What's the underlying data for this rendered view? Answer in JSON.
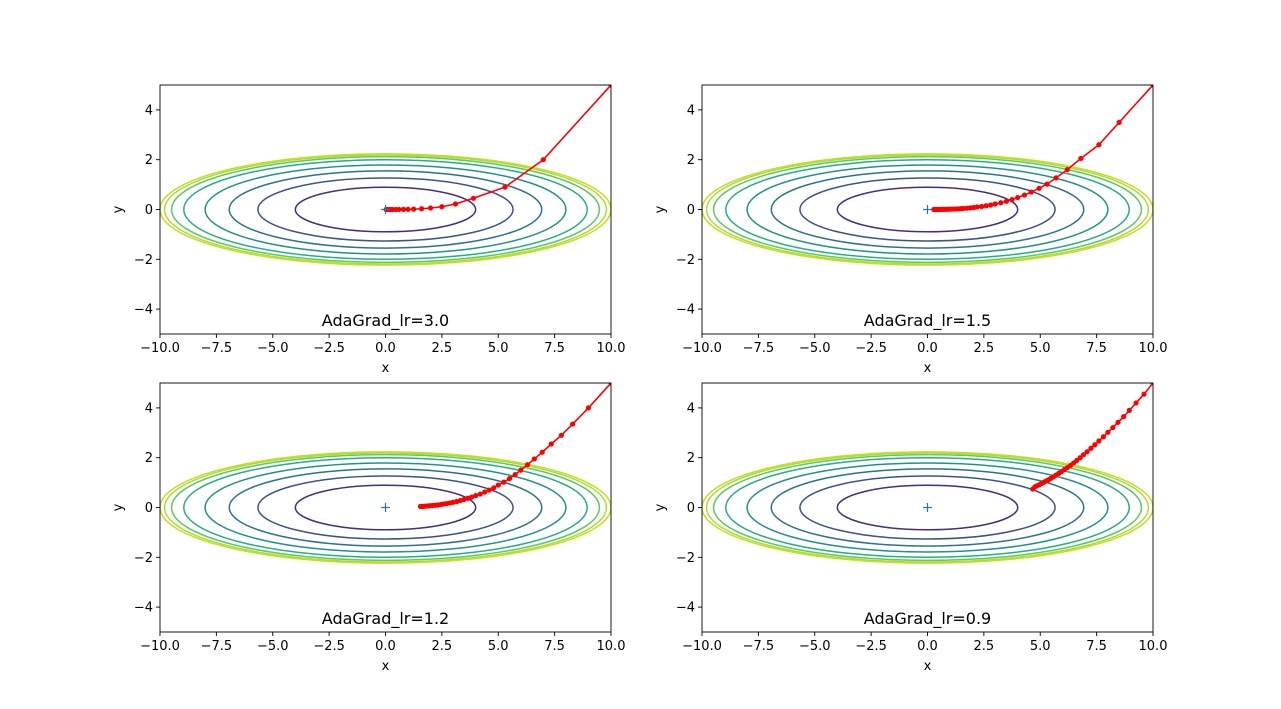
{
  "chart_data": [
    {
      "type": "line",
      "title": "AdaGrad_lr=3.0",
      "xlabel": "x",
      "ylabel": "y",
      "xlim": [
        -10,
        10
      ],
      "ylim": [
        -5,
        5
      ],
      "xticks": [
        "−10.0",
        "−7.5",
        "−5.0",
        "−2.5",
        "0.0",
        "2.5",
        "5.0",
        "7.5",
        "10.0"
      ],
      "yticks": [
        "−4",
        "−2",
        "0",
        "2",
        "4"
      ],
      "grid": false,
      "contour": {
        "function": "x^2/20 + y^2",
        "levels": [
          0.8,
          1.6,
          2.4,
          3.2,
          4.0,
          4.5,
          4.8,
          5.0
        ],
        "colormap": "viridis"
      },
      "minimum_marker": {
        "x": 0,
        "y": 0,
        "marker": "+"
      },
      "series": [
        {
          "color": "#ff0000",
          "x": [
            10.0,
            7.0,
            5.3,
            3.9,
            3.1,
            2.5,
            2.0,
            1.6,
            1.25,
            1.0,
            0.8,
            0.6,
            0.45,
            0.3,
            0.2,
            0.1,
            0.03
          ],
          "y": [
            5.0,
            2.0,
            0.9,
            0.45,
            0.22,
            0.11,
            0.06,
            0.03,
            0.015,
            0.008,
            0.004,
            0.002,
            0.001,
            0.0005,
            0.0002,
            0.0001,
            0.0
          ]
        }
      ]
    },
    {
      "type": "line",
      "title": "AdaGrad_lr=1.5",
      "xlabel": "x",
      "ylabel": "y",
      "xlim": [
        -10,
        10
      ],
      "ylim": [
        -5,
        5
      ],
      "xticks": [
        "−10.0",
        "−7.5",
        "−5.0",
        "−2.5",
        "0.0",
        "2.5",
        "5.0",
        "7.5",
        "10.0"
      ],
      "yticks": [
        "−4",
        "−2",
        "0",
        "2",
        "4"
      ],
      "grid": false,
      "contour": {
        "function": "x^2/20 + y^2",
        "levels": [
          0.8,
          1.6,
          2.4,
          3.2,
          4.0,
          4.5,
          4.8,
          5.0
        ],
        "colormap": "viridis"
      },
      "minimum_marker": {
        "x": 0,
        "y": 0,
        "marker": "+"
      },
      "series": [
        {
          "color": "#ff0000",
          "x": [
            10.0,
            8.5,
            7.6,
            6.8,
            6.2,
            5.7,
            5.3,
            4.95,
            4.6,
            4.3,
            4.0,
            3.75,
            3.5,
            3.25,
            3.0,
            2.8,
            2.6,
            2.4,
            2.2,
            2.05,
            1.9,
            1.75,
            1.6,
            1.48,
            1.36,
            1.25,
            1.14,
            1.04,
            0.95,
            0.86,
            0.78,
            0.7,
            0.63,
            0.56,
            0.5,
            0.44,
            0.38,
            0.33,
            0.28
          ],
          "y": [
            5.0,
            3.5,
            2.6,
            2.05,
            1.6,
            1.27,
            1.02,
            0.85,
            0.7,
            0.58,
            0.48,
            0.4,
            0.33,
            0.27,
            0.22,
            0.18,
            0.15,
            0.12,
            0.1,
            0.08,
            0.065,
            0.052,
            0.042,
            0.034,
            0.027,
            0.022,
            0.018,
            0.014,
            0.011,
            0.009,
            0.007,
            0.005,
            0.004,
            0.003,
            0.002,
            0.002,
            0.001,
            0.001,
            0.001
          ]
        }
      ]
    },
    {
      "type": "line",
      "title": "AdaGrad_lr=1.2",
      "xlabel": "x",
      "ylabel": "y",
      "xlim": [
        -10,
        10
      ],
      "ylim": [
        -5,
        5
      ],
      "xticks": [
        "−10.0",
        "−7.5",
        "−5.0",
        "−2.5",
        "0.0",
        "2.5",
        "5.0",
        "7.5",
        "10.0"
      ],
      "yticks": [
        "−4",
        "−2",
        "0",
        "2",
        "4"
      ],
      "grid": false,
      "contour": {
        "function": "x^2/20 + y^2",
        "levels": [
          0.8,
          1.6,
          2.4,
          3.2,
          4.0,
          4.5,
          4.8,
          5.0
        ],
        "colormap": "viridis"
      },
      "minimum_marker": {
        "x": 0,
        "y": 0,
        "marker": "+"
      },
      "series": [
        {
          "color": "#ff0000",
          "x": [
            10.0,
            9.0,
            8.3,
            7.8,
            7.35,
            6.95,
            6.6,
            6.3,
            6.0,
            5.75,
            5.5,
            5.25,
            5.0,
            4.8,
            4.6,
            4.4,
            4.2,
            4.0,
            3.82,
            3.65,
            3.48,
            3.32,
            3.16,
            3.0,
            2.86,
            2.72,
            2.58,
            2.45,
            2.32,
            2.2,
            2.08,
            1.96,
            1.85,
            1.74,
            1.64,
            1.55
          ],
          "y": [
            5.0,
            4.0,
            3.35,
            2.9,
            2.55,
            2.22,
            1.95,
            1.72,
            1.5,
            1.32,
            1.16,
            1.02,
            0.9,
            0.79,
            0.7,
            0.62,
            0.54,
            0.48,
            0.42,
            0.37,
            0.32,
            0.28,
            0.24,
            0.21,
            0.18,
            0.16,
            0.14,
            0.12,
            0.1,
            0.09,
            0.08,
            0.07,
            0.06,
            0.05,
            0.04,
            0.04
          ]
        }
      ]
    },
    {
      "type": "line",
      "title": "AdaGrad_lr=0.9",
      "xlabel": "x",
      "ylabel": "y",
      "xlim": [
        -10,
        10
      ],
      "ylim": [
        -5,
        5
      ],
      "xticks": [
        "−10.0",
        "−7.5",
        "−5.0",
        "−2.5",
        "0.0",
        "2.5",
        "5.0",
        "7.5",
        "10.0"
      ],
      "yticks": [
        "−4",
        "−2",
        "0",
        "2",
        "4"
      ],
      "grid": false,
      "contour": {
        "function": "x^2/20 + y^2",
        "levels": [
          0.8,
          1.6,
          2.4,
          3.2,
          4.0,
          4.5,
          4.8,
          5.0
        ],
        "colormap": "viridis"
      },
      "minimum_marker": {
        "x": 0,
        "y": 0,
        "marker": "+"
      },
      "series": [
        {
          "color": "#ff0000",
          "x": [
            10.0,
            9.6,
            9.25,
            8.95,
            8.7,
            8.45,
            8.22,
            8.0,
            7.8,
            7.6,
            7.42,
            7.25,
            7.08,
            6.92,
            6.77,
            6.62,
            6.48,
            6.34,
            6.2,
            6.07,
            5.94,
            5.82,
            5.7,
            5.58,
            5.47,
            5.36,
            5.25,
            5.15,
            5.05,
            4.95,
            4.85,
            4.76,
            4.67
          ],
          "y": [
            5.0,
            4.55,
            4.2,
            3.9,
            3.65,
            3.42,
            3.21,
            3.02,
            2.84,
            2.67,
            2.52,
            2.38,
            2.24,
            2.12,
            2.0,
            1.89,
            1.79,
            1.69,
            1.6,
            1.52,
            1.44,
            1.37,
            1.3,
            1.23,
            1.17,
            1.11,
            1.06,
            1.01,
            0.96,
            0.91,
            0.87,
            0.83,
            0.74
          ]
        }
      ]
    }
  ]
}
